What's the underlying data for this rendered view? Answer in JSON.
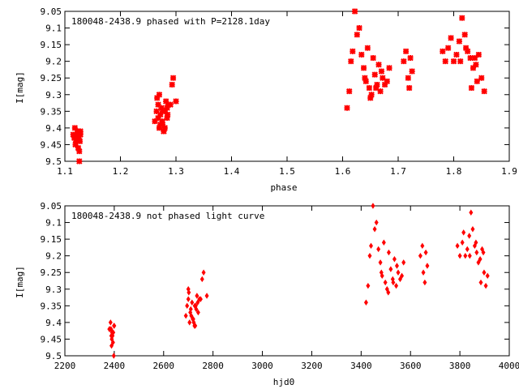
{
  "colors": {
    "points": "#ff0000",
    "axis": "#000000",
    "background": "#ffffff"
  },
  "chart_data": [
    {
      "type": "scatter",
      "title": "180048-2438.9 phased with P=2128.1day",
      "xlabel": "phase",
      "ylabel": "I[mag]",
      "xlim": [
        1.1,
        1.9
      ],
      "ylim": [
        9.5,
        9.05
      ],
      "y_inverted": true,
      "grid": false,
      "x_ticks": [
        "1.1",
        "1.2",
        "1.3",
        "1.4",
        "1.5",
        "1.6",
        "1.7",
        "1.8",
        "1.9"
      ],
      "y_ticks": [
        "9.05",
        "9.1",
        "9.15",
        "9.2",
        "9.25",
        "9.3",
        "9.35",
        "9.4",
        "9.45",
        "9.5"
      ],
      "marker": "cross",
      "x": [
        1.115,
        1.118,
        1.12,
        1.122,
        1.124,
        1.126,
        1.128,
        1.119,
        1.121,
        1.125,
        1.127,
        1.123,
        1.126,
        1.128,
        1.117,
        1.262,
        1.265,
        1.268,
        1.27,
        1.272,
        1.274,
        1.276,
        1.278,
        1.28,
        1.282,
        1.284,
        1.286,
        1.27,
        1.275,
        1.28,
        1.285,
        1.266,
        1.272,
        1.278,
        1.284,
        1.29,
        1.293,
        1.295,
        1.3,
        1.268,
        1.276,
        1.608,
        1.612,
        1.615,
        1.618,
        1.622,
        1.626,
        1.63,
        1.634,
        1.638,
        1.642,
        1.645,
        1.648,
        1.652,
        1.655,
        1.658,
        1.662,
        1.665,
        1.668,
        1.672,
        1.676,
        1.68,
        1.684,
        1.64,
        1.65,
        1.66,
        1.67,
        1.71,
        1.714,
        1.718,
        1.72,
        1.722,
        1.725,
        1.78,
        1.785,
        1.79,
        1.795,
        1.8,
        1.805,
        1.81,
        1.815,
        1.82,
        1.825,
        1.83,
        1.835,
        1.84,
        1.845,
        1.85,
        1.855,
        1.812,
        1.822,
        1.832,
        1.838,
        1.842
      ],
      "y": [
        9.42,
        9.4,
        9.44,
        9.43,
        9.46,
        9.5,
        9.41,
        9.45,
        9.42,
        9.43,
        9.44,
        9.41,
        9.47,
        9.42,
        9.43,
        9.38,
        9.35,
        9.33,
        9.4,
        9.36,
        9.34,
        9.39,
        9.41,
        9.35,
        9.32,
        9.37,
        9.33,
        9.3,
        9.38,
        9.4,
        9.36,
        9.31,
        9.39,
        9.41,
        9.34,
        9.33,
        9.27,
        9.25,
        9.32,
        9.37,
        9.35,
        9.34,
        9.29,
        9.2,
        9.17,
        9.05,
        9.12,
        9.1,
        9.18,
        9.22,
        9.26,
        9.16,
        9.28,
        9.3,
        9.19,
        9.24,
        9.27,
        9.21,
        9.29,
        9.25,
        9.27,
        9.26,
        9.22,
        9.25,
        9.31,
        9.28,
        9.23,
        9.2,
        9.17,
        9.25,
        9.28,
        9.19,
        9.23,
        9.17,
        9.2,
        9.16,
        9.13,
        9.2,
        9.18,
        9.14,
        9.07,
        9.12,
        9.17,
        9.19,
        9.22,
        9.21,
        9.18,
        9.25,
        9.29,
        9.2,
        9.16,
        9.28,
        9.19,
        9.26
      ]
    },
    {
      "type": "scatter",
      "title": "180048-2438.9 not phased light curve",
      "xlabel": "hjd0",
      "ylabel": "I[mag]",
      "xlim": [
        2200,
        4000
      ],
      "ylim": [
        9.5,
        9.05
      ],
      "y_inverted": true,
      "grid": false,
      "x_ticks": [
        "2200",
        "2400",
        "2600",
        "2800",
        "3000",
        "3200",
        "3400",
        "3600",
        "3800",
        "4000"
      ],
      "y_ticks": [
        "9.05",
        "9.1",
        "9.15",
        "9.2",
        "9.25",
        "9.3",
        "9.35",
        "9.4",
        "9.45",
        "9.5"
      ],
      "marker": "diamond",
      "x": [
        2380,
        2385,
        2388,
        2392,
        2395,
        2398,
        2400,
        2390,
        2387,
        2396,
        2393,
        2399,
        2389,
        2383,
        2391,
        2690,
        2695,
        2700,
        2705,
        2710,
        2715,
        2720,
        2725,
        2730,
        2735,
        2740,
        2745,
        2700,
        2712,
        2722,
        2732,
        2702,
        2718,
        2728,
        2738,
        2750,
        2756,
        2762,
        2775,
        2708,
        2726,
        3420,
        3428,
        3435,
        3440,
        3448,
        3455,
        3462,
        3470,
        3478,
        3485,
        3492,
        3498,
        3505,
        3512,
        3520,
        3528,
        3535,
        3542,
        3550,
        3558,
        3565,
        3572,
        3482,
        3510,
        3530,
        3545,
        3640,
        3648,
        3652,
        3658,
        3662,
        3668,
        3790,
        3800,
        3810,
        3815,
        3822,
        3830,
        3838,
        3845,
        3852,
        3860,
        3868,
        3875,
        3882,
        3890,
        3898,
        3905,
        3840,
        3865,
        3885,
        3895,
        3912
      ],
      "y": [
        9.42,
        9.4,
        9.44,
        9.43,
        9.46,
        9.5,
        9.41,
        9.45,
        9.42,
        9.43,
        9.44,
        9.41,
        9.47,
        9.42,
        9.43,
        9.38,
        9.35,
        9.33,
        9.4,
        9.36,
        9.34,
        9.39,
        9.41,
        9.35,
        9.32,
        9.37,
        9.33,
        9.3,
        9.38,
        9.4,
        9.36,
        9.31,
        9.39,
        9.41,
        9.34,
        9.33,
        9.27,
        9.25,
        9.32,
        9.37,
        9.35,
        9.34,
        9.29,
        9.2,
        9.17,
        9.05,
        9.12,
        9.1,
        9.18,
        9.22,
        9.26,
        9.16,
        9.28,
        9.3,
        9.19,
        9.24,
        9.27,
        9.21,
        9.29,
        9.25,
        9.27,
        9.26,
        9.22,
        9.25,
        9.31,
        9.28,
        9.23,
        9.2,
        9.17,
        9.25,
        9.28,
        9.19,
        9.23,
        9.17,
        9.2,
        9.16,
        9.13,
        9.2,
        9.18,
        9.14,
        9.07,
        9.12,
        9.17,
        9.19,
        9.22,
        9.21,
        9.18,
        9.25,
        9.29,
        9.2,
        9.16,
        9.28,
        9.19,
        9.26
      ]
    }
  ]
}
